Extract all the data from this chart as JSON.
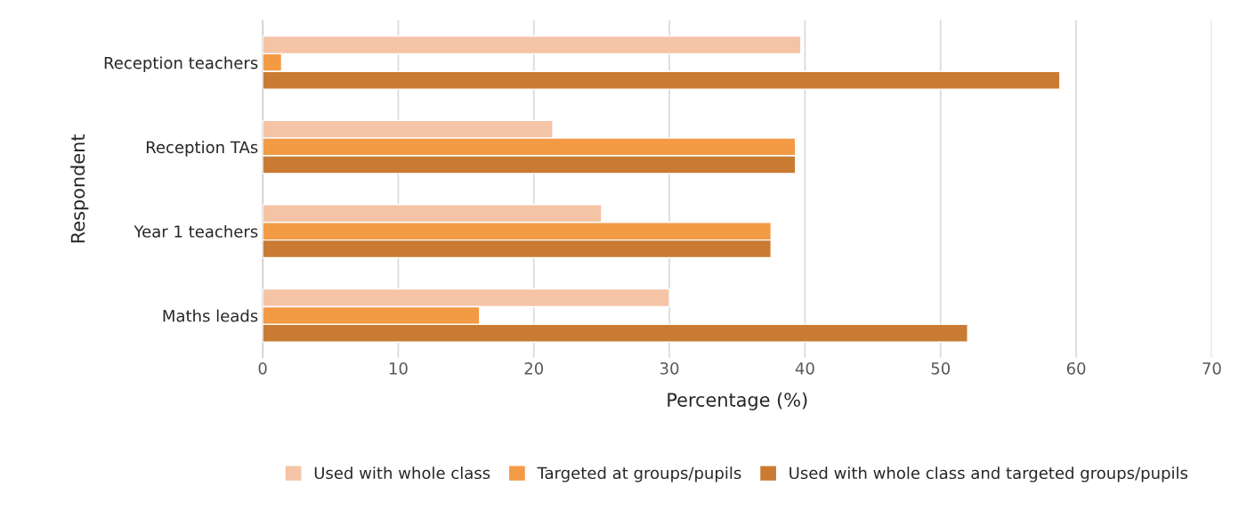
{
  "chart_data": {
    "type": "bar",
    "orientation": "horizontal",
    "xlabel": "Percentage (%)",
    "ylabel": "Respondent",
    "categories": [
      "Reception teachers",
      "Reception TAs",
      "Year 1 teachers",
      "Maths leads"
    ],
    "series": [
      {
        "name": "Used with whole class",
        "color": "#f5c3a6",
        "values": [
          39.7,
          21.4,
          25.0,
          30.0
        ]
      },
      {
        "name": "Targeted at groups/pupils",
        "color": "#f39a44",
        "values": [
          1.4,
          39.3,
          37.5,
          16.0
        ]
      },
      {
        "name": "Used with whole class and targeted groups/pupils",
        "color": "#c97b34",
        "values": [
          58.8,
          39.3,
          37.5,
          52.0
        ]
      }
    ],
    "xlim": [
      0,
      70
    ],
    "xticks": [
      0,
      10,
      20,
      30,
      40,
      50,
      60,
      70
    ],
    "grid": "x",
    "legend": "bottom"
  }
}
